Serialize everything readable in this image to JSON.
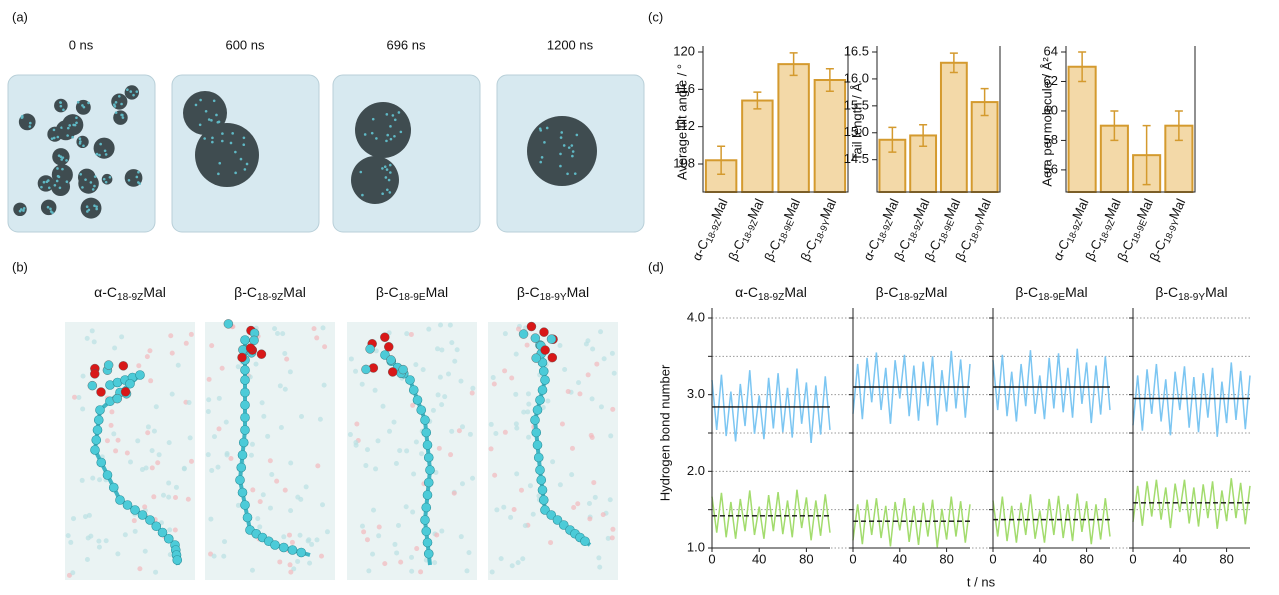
{
  "panel_labels": [
    "(a)",
    "(b)",
    "(c)",
    "(d)"
  ],
  "snapshots": [
    "0 ns",
    "600 ns",
    "696 ns",
    "1200 ns"
  ],
  "molecules": [
    {
      "prefix": "α-C",
      "sub": "18-9Z",
      "suffix": "Mal"
    },
    {
      "prefix": "β-C",
      "sub": "18-9Z",
      "suffix": "Mal"
    },
    {
      "prefix": "β-C",
      "sub": "18-9E",
      "suffix": "Mal"
    },
    {
      "prefix": "β-C",
      "sub": "18-9Y",
      "suffix": "Mal"
    }
  ],
  "panel_d": {
    "xlabel": "t / ns"
  },
  "chart_data": [
    {
      "type": "bar",
      "ylabel": "Average tilt angle / °",
      "categories": [
        {
          "prefix": "α-C",
          "sub": "18-9Z",
          "suffix": "Mal"
        },
        {
          "prefix": "β-C",
          "sub": "18-9Z",
          "suffix": "Mal"
        },
        {
          "prefix": "β-C",
          "sub": "18-9E",
          "suffix": "Mal"
        },
        {
          "prefix": "β-C",
          "sub": "18-9Y",
          "suffix": "Mal"
        }
      ],
      "values": [
        108.4,
        114.8,
        118.7,
        117.0
      ],
      "errors": [
        1.5,
        0.9,
        1.2,
        1.2
      ],
      "color": "#f3d9a8",
      "edgecolor": "#d49a2e",
      "ylim": [
        105,
        120
      ],
      "yticks": [
        108,
        112,
        116,
        120
      ]
    },
    {
      "type": "bar",
      "ylabel": "Tail length / Å",
      "categories": [
        {
          "prefix": "α-C",
          "sub": "18-9Z",
          "suffix": "Mal"
        },
        {
          "prefix": "β-C",
          "sub": "18-9Z",
          "suffix": "Mal"
        },
        {
          "prefix": "β-C",
          "sub": "18-9E",
          "suffix": "Mal"
        },
        {
          "prefix": "β-C",
          "sub": "18-9Y",
          "suffix": "Mal"
        }
      ],
      "values": [
        14.87,
        14.95,
        16.3,
        15.57
      ],
      "errors": [
        0.23,
        0.2,
        0.18,
        0.25
      ],
      "color": "#f3d9a8",
      "edgecolor": "#d49a2e",
      "ylim": [
        13.9,
        16.5
      ],
      "yticks": [
        14.5,
        {
          "value": 15,
          "label": "15.0"
        },
        15.5,
        {
          "value": 16,
          "label": "16.0"
        },
        16.5
      ]
    },
    {
      "type": "bar",
      "ylabel": "Aera per molecule / Å²",
      "categories": [
        {
          "prefix": "α-C",
          "sub": "18-9Z",
          "suffix": "Mal"
        },
        {
          "prefix": "β-C",
          "sub": "18-9Z",
          "suffix": "Mal"
        },
        {
          "prefix": "β-C",
          "sub": "18-9E",
          "suffix": "Mal"
        },
        {
          "prefix": "β-C",
          "sub": "18-9Y",
          "suffix": "Mal"
        }
      ],
      "values": [
        63,
        59,
        57,
        59
      ],
      "errors": [
        1,
        1,
        2,
        1
      ],
      "color": "#f3d9a8",
      "edgecolor": "#d49a2e",
      "ylim": [
        54.5,
        64
      ],
      "yticks": [
        56,
        58,
        60,
        62,
        64
      ]
    },
    {
      "type": "line",
      "title": {
        "prefix": "α-C",
        "sub": "18-9Z",
        "suffix": "Mal"
      },
      "ylabel": "Hydrogen bond number",
      "x": [
        0,
        4,
        8,
        12,
        16,
        20,
        24,
        28,
        32,
        36,
        40,
        44,
        48,
        52,
        56,
        60,
        64,
        68,
        72,
        76,
        80,
        84,
        88,
        92,
        96,
        100
      ],
      "series": [
        {
          "color": "#7cc6f2",
          "values": [
            3.19,
            2.54,
            3.26,
            2.46,
            3.04,
            2.39,
            3.14,
            2.59,
            3.32,
            2.49,
            2.99,
            2.42,
            3.22,
            2.56,
            3.28,
            2.51,
            3.09,
            2.44,
            3.34,
            2.62,
            3.16,
            2.37,
            3.12,
            2.48,
            3.24,
            2.54
          ]
        },
        {
          "color": "#a3dc6e",
          "values": [
            1.67,
            1.2,
            1.72,
            1.14,
            1.6,
            1.12,
            1.64,
            1.22,
            1.75,
            1.17,
            1.54,
            1.12,
            1.69,
            1.22,
            1.73,
            1.18,
            1.62,
            1.14,
            1.76,
            1.26,
            1.66,
            1.1,
            1.62,
            1.16,
            1.7,
            1.2
          ]
        }
      ],
      "mean_lines": [
        {
          "value": 2.84,
          "dashed": false
        },
        {
          "value": 1.42,
          "dashed": true
        }
      ],
      "xlim": [
        0,
        100
      ],
      "xticks": [
        0,
        40,
        80
      ],
      "ylim": [
        1,
        4
      ],
      "yticks": [
        {
          "value": 1,
          "label": "1.0"
        },
        1.5,
        {
          "value": 2,
          "label": "2.0"
        },
        2.5,
        {
          "value": 3,
          "label": "3.0"
        },
        3.5,
        {
          "value": 4,
          "label": "4.0"
        }
      ],
      "grid": true
    },
    {
      "type": "line",
      "title": {
        "prefix": "β-C",
        "sub": "18-9Z",
        "suffix": "Mal"
      },
      "x": [
        0,
        4,
        8,
        12,
        16,
        20,
        24,
        28,
        32,
        36,
        40,
        44,
        48,
        52,
        56,
        60,
        64,
        68,
        72,
        76,
        80,
        84,
        88,
        92,
        96,
        100
      ],
      "series": [
        {
          "color": "#7cc6f2",
          "values": [
            2.75,
            3.4,
            2.68,
            3.48,
            2.9,
            3.55,
            2.8,
            3.35,
            2.62,
            3.45,
            2.95,
            3.52,
            2.72,
            3.38,
            2.66,
            3.43,
            2.85,
            3.5,
            2.6,
            3.32,
            2.78,
            3.57,
            2.82,
            3.46,
            2.7,
            3.4
          ]
        },
        {
          "color": "#a3dc6e",
          "values": [
            1.1,
            1.57,
            1.05,
            1.63,
            1.17,
            1.65,
            1.13,
            1.55,
            1.02,
            1.6,
            1.23,
            1.65,
            1.08,
            1.55,
            1.04,
            1.59,
            1.15,
            1.63,
            1.01,
            1.51,
            1.11,
            1.67,
            1.15,
            1.61,
            1.07,
            1.57
          ]
        }
      ],
      "mean_lines": [
        {
          "value": 3.1,
          "dashed": false
        },
        {
          "value": 1.35,
          "dashed": true
        }
      ],
      "xlim": [
        0,
        100
      ],
      "xticks": [
        0,
        40,
        80
      ],
      "ylim": [
        1,
        4
      ],
      "yticks": [
        1,
        1.5,
        2,
        2.5,
        3,
        3.5,
        4
      ],
      "grid": true
    },
    {
      "type": "line",
      "title": {
        "prefix": "β-C",
        "sub": "18-9E",
        "suffix": "Mal"
      },
      "x": [
        0,
        4,
        8,
        12,
        16,
        20,
        24,
        28,
        32,
        36,
        40,
        44,
        48,
        52,
        56,
        60,
        64,
        68,
        72,
        76,
        80,
        84,
        88,
        92,
        96,
        100
      ],
      "series": [
        {
          "color": "#7cc6f2",
          "values": [
            3.45,
            2.8,
            3.52,
            2.72,
            3.3,
            2.65,
            3.4,
            2.85,
            3.58,
            2.75,
            3.25,
            2.68,
            3.48,
            2.82,
            3.54,
            2.77,
            3.35,
            2.7,
            3.6,
            2.88,
            3.42,
            2.63,
            3.38,
            2.74,
            3.5,
            2.8
          ]
        },
        {
          "color": "#a3dc6e",
          "values": [
            1.62,
            1.15,
            1.67,
            1.09,
            1.55,
            1.07,
            1.59,
            1.17,
            1.7,
            1.12,
            1.49,
            1.07,
            1.64,
            1.17,
            1.68,
            1.13,
            1.57,
            1.09,
            1.71,
            1.21,
            1.61,
            1.05,
            1.57,
            1.11,
            1.65,
            1.15
          ]
        }
      ],
      "mean_lines": [
        {
          "value": 3.1,
          "dashed": false
        },
        {
          "value": 1.37,
          "dashed": true
        }
      ],
      "xlim": [
        0,
        100
      ],
      "xticks": [
        0,
        40,
        80
      ],
      "ylim": [
        1,
        4
      ],
      "yticks": [
        1,
        1.5,
        2,
        2.5,
        3,
        3.5,
        4
      ],
      "grid": true
    },
    {
      "type": "line",
      "title": {
        "prefix": "β-C",
        "sub": "18-9Y",
        "suffix": "Mal"
      },
      "x": [
        0,
        4,
        8,
        12,
        16,
        20,
        24,
        28,
        32,
        36,
        40,
        44,
        48,
        52,
        56,
        60,
        64,
        68,
        72,
        76,
        80,
        84,
        88,
        92,
        96,
        100
      ],
      "series": [
        {
          "color": "#7cc6f2",
          "values": [
            2.6,
            3.25,
            2.53,
            3.33,
            2.75,
            3.4,
            2.65,
            3.2,
            2.47,
            3.3,
            2.8,
            3.37,
            2.57,
            3.23,
            2.51,
            3.28,
            2.7,
            3.35,
            2.45,
            3.17,
            2.63,
            3.42,
            2.67,
            3.31,
            2.55,
            3.25
          ]
        },
        {
          "color": "#a3dc6e",
          "values": [
            1.34,
            1.81,
            1.29,
            1.87,
            1.41,
            1.89,
            1.37,
            1.79,
            1.26,
            1.84,
            1.47,
            1.89,
            1.32,
            1.79,
            1.28,
            1.83,
            1.39,
            1.87,
            1.25,
            1.75,
            1.35,
            1.91,
            1.39,
            1.85,
            1.31,
            1.81
          ]
        }
      ],
      "mean_lines": [
        {
          "value": 2.95,
          "dashed": false
        },
        {
          "value": 1.59,
          "dashed": true
        }
      ],
      "xlim": [
        0,
        100
      ],
      "xticks": [
        0,
        40,
        80
      ],
      "ylim": [
        1,
        4
      ],
      "yticks": [
        1,
        1.5,
        2,
        2.5,
        3,
        3.5,
        4
      ],
      "grid": true
    }
  ]
}
